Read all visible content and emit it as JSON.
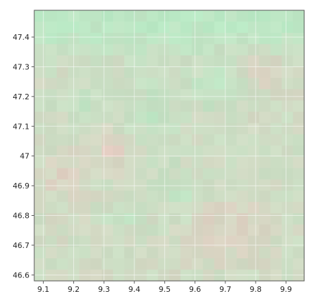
{
  "map": {
    "type": "heatmap",
    "x_ticks": [
      "9.1",
      "9.2",
      "9.3",
      "9.4",
      "9.5",
      "9.6",
      "9.7",
      "9.8",
      "9.9"
    ],
    "y_ticks": [
      "47.4",
      "47.3",
      "47.2",
      "47.1",
      "47",
      "46.9",
      "46.8",
      "46.7",
      "46.6"
    ],
    "x_tick_values": [
      9.1,
      9.2,
      9.3,
      9.4,
      9.5,
      9.6,
      9.7,
      9.8,
      9.9
    ],
    "y_tick_values": [
      47.4,
      47.3,
      47.2,
      47.1,
      47.0,
      46.9,
      46.8,
      46.7,
      46.6
    ],
    "xlim": [
      9.07,
      9.96
    ],
    "ylim": [
      46.58,
      47.49
    ],
    "grid": true,
    "grid_columns": 24,
    "grid_rows": 24,
    "colors": {
      "green": "#b9e8c4",
      "neutral": "#cfdcc4",
      "pink": "#e8c8c0",
      "grid_line": "#ffffff",
      "frame": "#555555"
    }
  }
}
